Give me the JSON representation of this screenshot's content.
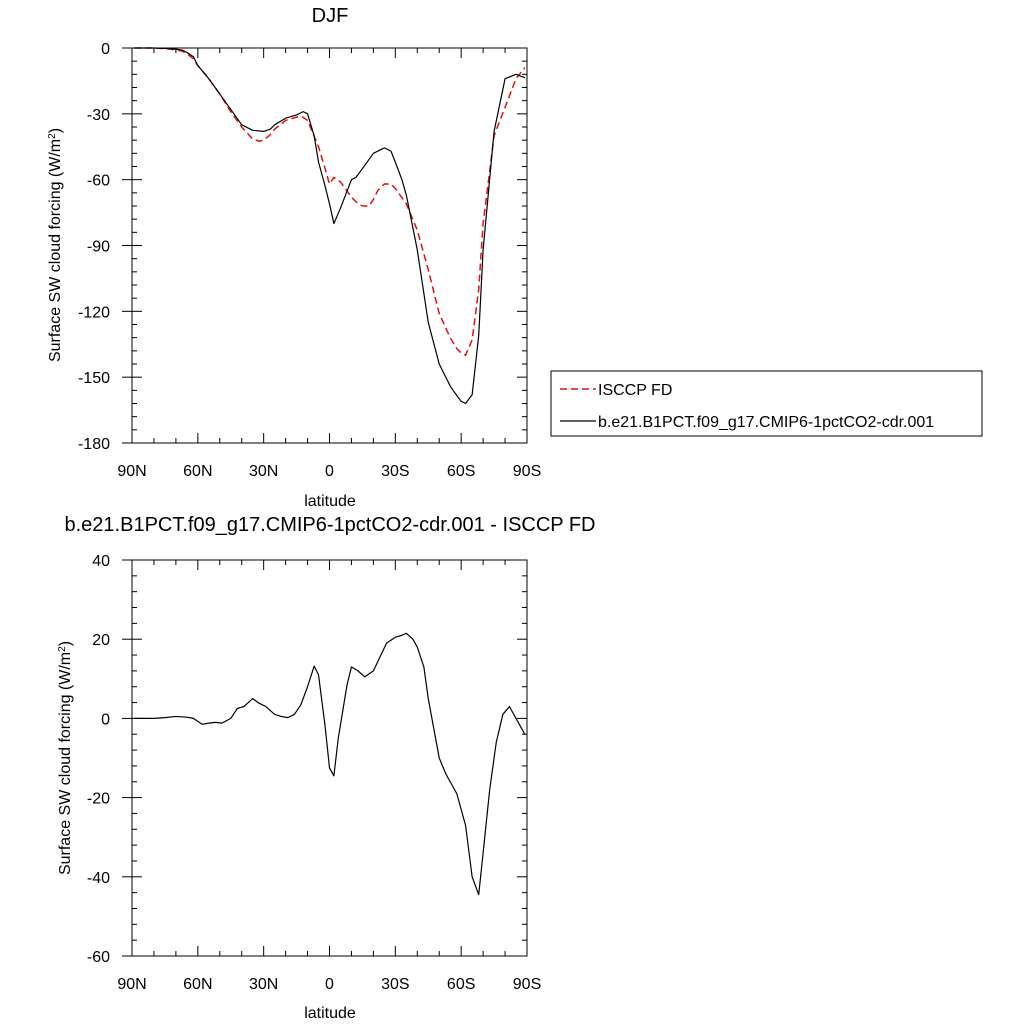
{
  "chart_data": [
    {
      "type": "line",
      "title": "DJF",
      "xlabel": "latitude",
      "ylabel_main": "Surface SW cloud forcing (W/m",
      "ylabel_sup": "2",
      "ylabel_end": ")",
      "xlim": [
        90,
        -90
      ],
      "ylim": [
        -180,
        0
      ],
      "xticks": [
        90,
        60,
        30,
        0,
        -30,
        -60,
        -90
      ],
      "xticklabels": [
        "90N",
        "60N",
        "30N",
        "0",
        "30S",
        "60S",
        "90S"
      ],
      "yticks": [
        0,
        -30,
        -60,
        -90,
        -120,
        -150,
        -180
      ],
      "yticklabels": [
        "0",
        "-30",
        "-60",
        "-90",
        "-120",
        "-150",
        "-180"
      ],
      "legend_placement": "right",
      "series": [
        {
          "name": "ISCCP FD",
          "color": "#e01010",
          "dash": "dashed",
          "x": [
            89,
            85,
            80,
            75,
            70,
            67,
            65,
            62,
            60,
            55,
            50,
            45,
            40,
            35,
            32,
            30,
            27,
            25,
            20,
            15,
            13,
            10,
            5,
            2,
            0,
            -2,
            -5,
            -10,
            -12,
            -15,
            -18,
            -20,
            -22,
            -25,
            -28,
            -30,
            -35,
            -40,
            -45,
            -50,
            -55,
            -58,
            -60,
            -62,
            -65,
            -68,
            -70,
            -75,
            -80,
            -85,
            -89
          ],
          "y": [
            0,
            0,
            0,
            -0.3,
            -0.8,
            -1.5,
            -2.5,
            -5,
            -8,
            -14,
            -21,
            -29,
            -36,
            -41.5,
            -42.5,
            -42,
            -39.5,
            -37,
            -33,
            -31.5,
            -31,
            -33,
            -45,
            -55,
            -62,
            -59,
            -61,
            -68,
            -70,
            -72,
            -72,
            -69,
            -65,
            -62,
            -62,
            -64,
            -71,
            -83,
            -101,
            -121,
            -132,
            -137,
            -139,
            -140,
            -133,
            -110,
            -80,
            -40,
            -27,
            -14,
            -9
          ]
        },
        {
          "name": "b.e21.B1PCT.f09_g17.CMIP6-1pctCO2-cdr.001",
          "color": "#000000",
          "dash": "solid",
          "x": [
            89,
            85,
            80,
            75,
            70,
            67,
            65,
            62,
            60,
            55,
            50,
            45,
            40,
            35,
            30,
            27,
            25,
            20,
            15,
            12,
            10,
            7,
            5,
            2,
            0,
            -2,
            -5,
            -10,
            -12,
            -15,
            -20,
            -25,
            -28,
            -30,
            -33,
            -35,
            -40,
            -45,
            -50,
            -55,
            -57,
            -60,
            -62,
            -65,
            -68,
            -70,
            -75,
            -80,
            -85,
            -89
          ],
          "y": [
            0,
            0,
            0,
            -0.2,
            -0.5,
            -1,
            -2,
            -4,
            -8,
            -14,
            -21,
            -28,
            -35,
            -37.5,
            -38,
            -37,
            -35,
            -32,
            -30.5,
            -29,
            -30,
            -40,
            -52,
            -63,
            -71,
            -80,
            -73,
            -60,
            -59,
            -55,
            -48,
            -45.5,
            -47,
            -52,
            -60,
            -67,
            -92,
            -125,
            -144,
            -154,
            -157,
            -161,
            -162,
            -158,
            -131,
            -92,
            -38,
            -14,
            -12,
            -13.5
          ]
        }
      ]
    },
    {
      "type": "line",
      "title": "b.e21.B1PCT.f09_g17.CMIP6-1pctCO2-cdr.001 - ISCCP FD",
      "xlabel": "latitude",
      "ylabel_main": "Surface SW cloud forcing (W/m",
      "ylabel_sup": "2",
      "ylabel_end": ")",
      "xlim": [
        90,
        -90
      ],
      "ylim": [
        -60,
        40
      ],
      "xticks": [
        90,
        60,
        30,
        0,
        -30,
        -60,
        -90
      ],
      "xticklabels": [
        "90N",
        "60N",
        "30N",
        "0",
        "30S",
        "60S",
        "90S"
      ],
      "yticks": [
        40,
        20,
        0,
        -20,
        -40,
        -60
      ],
      "yticklabels": [
        "40",
        "20",
        "0",
        "-20",
        "-40",
        "-60"
      ],
      "series": [
        {
          "color": "#000000",
          "dash": "solid",
          "x": [
            89,
            85,
            80,
            75,
            70,
            65,
            62,
            58,
            55,
            52,
            49,
            45,
            42,
            39,
            35,
            32,
            29,
            25,
            22,
            19,
            16,
            13,
            10,
            7,
            5,
            2,
            0,
            -2,
            -4,
            -8,
            -10,
            -13,
            -16,
            -20,
            -23,
            -26,
            -30,
            -33,
            -35,
            -38,
            -40,
            -43,
            -45,
            -48,
            -50,
            -53,
            -55,
            -58,
            -60,
            -62,
            -65,
            -68,
            -70,
            -73,
            -76,
            -79,
            -82,
            -85,
            -89
          ],
          "y": [
            0,
            0,
            0,
            0.2,
            0.5,
            0.3,
            0,
            -1.5,
            -1.2,
            -1,
            -1.2,
            0,
            2.5,
            3,
            5,
            3.8,
            3,
            1,
            0.5,
            0.2,
            1,
            3.5,
            8,
            13.2,
            11,
            -2,
            -12.5,
            -14.5,
            -5,
            8.5,
            13,
            12,
            10.5,
            12,
            15.5,
            19,
            20.5,
            21,
            21.5,
            20,
            18,
            13,
            5,
            -4,
            -10,
            -14,
            -16,
            -19,
            -23,
            -27,
            -40,
            -44.5,
            -34,
            -18,
            -6,
            1,
            3,
            0,
            -4
          ]
        }
      ]
    }
  ]
}
